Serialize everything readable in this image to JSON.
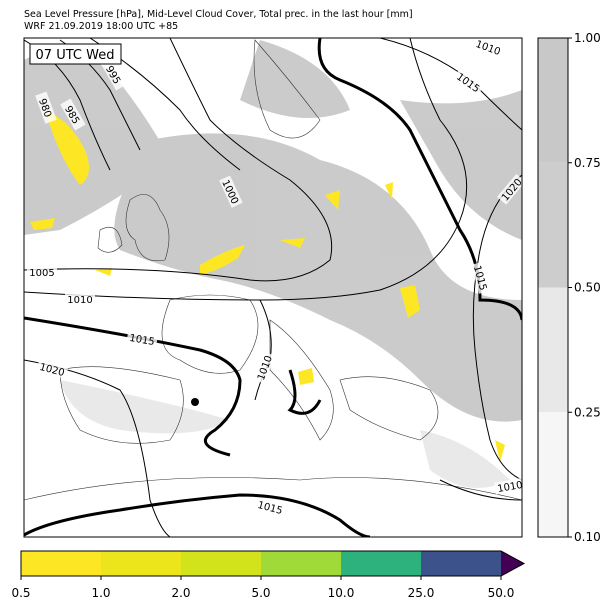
{
  "header": {
    "title_line1": "Sea Level Pressure [hPa], Mid-Level Cloud Cover, Total prec. in the last hour [mm]",
    "title_line2": "WRF 21.09.2019 18:00 UTC +85"
  },
  "map": {
    "time_label": "07 UTC Wed",
    "isobar_labels": [
      "995",
      "980",
      "985",
      "1000",
      "1005",
      "1010",
      "1015",
      "1020",
      "1010",
      "1010",
      "1015",
      "1020",
      "1015",
      "1010",
      "1015"
    ]
  },
  "cloud_colorbar": {
    "ticks": [
      "1.00",
      "0.75",
      "0.50",
      "0.25",
      "0.10"
    ],
    "colors": [
      "#c8c8c8",
      "#cdcdcd",
      "#e8e8e8",
      "#f6f6f6"
    ]
  },
  "precip_colorbar": {
    "ticks": [
      "0.5",
      "1.0",
      "2.0",
      "5.0",
      "10.0",
      "25.0",
      "50.0"
    ],
    "colors": [
      "#fde725",
      "#ede51b",
      "#d2e21b",
      "#a0da39",
      "#2db27d",
      "#3b528b"
    ],
    "over_color": "#440154"
  }
}
